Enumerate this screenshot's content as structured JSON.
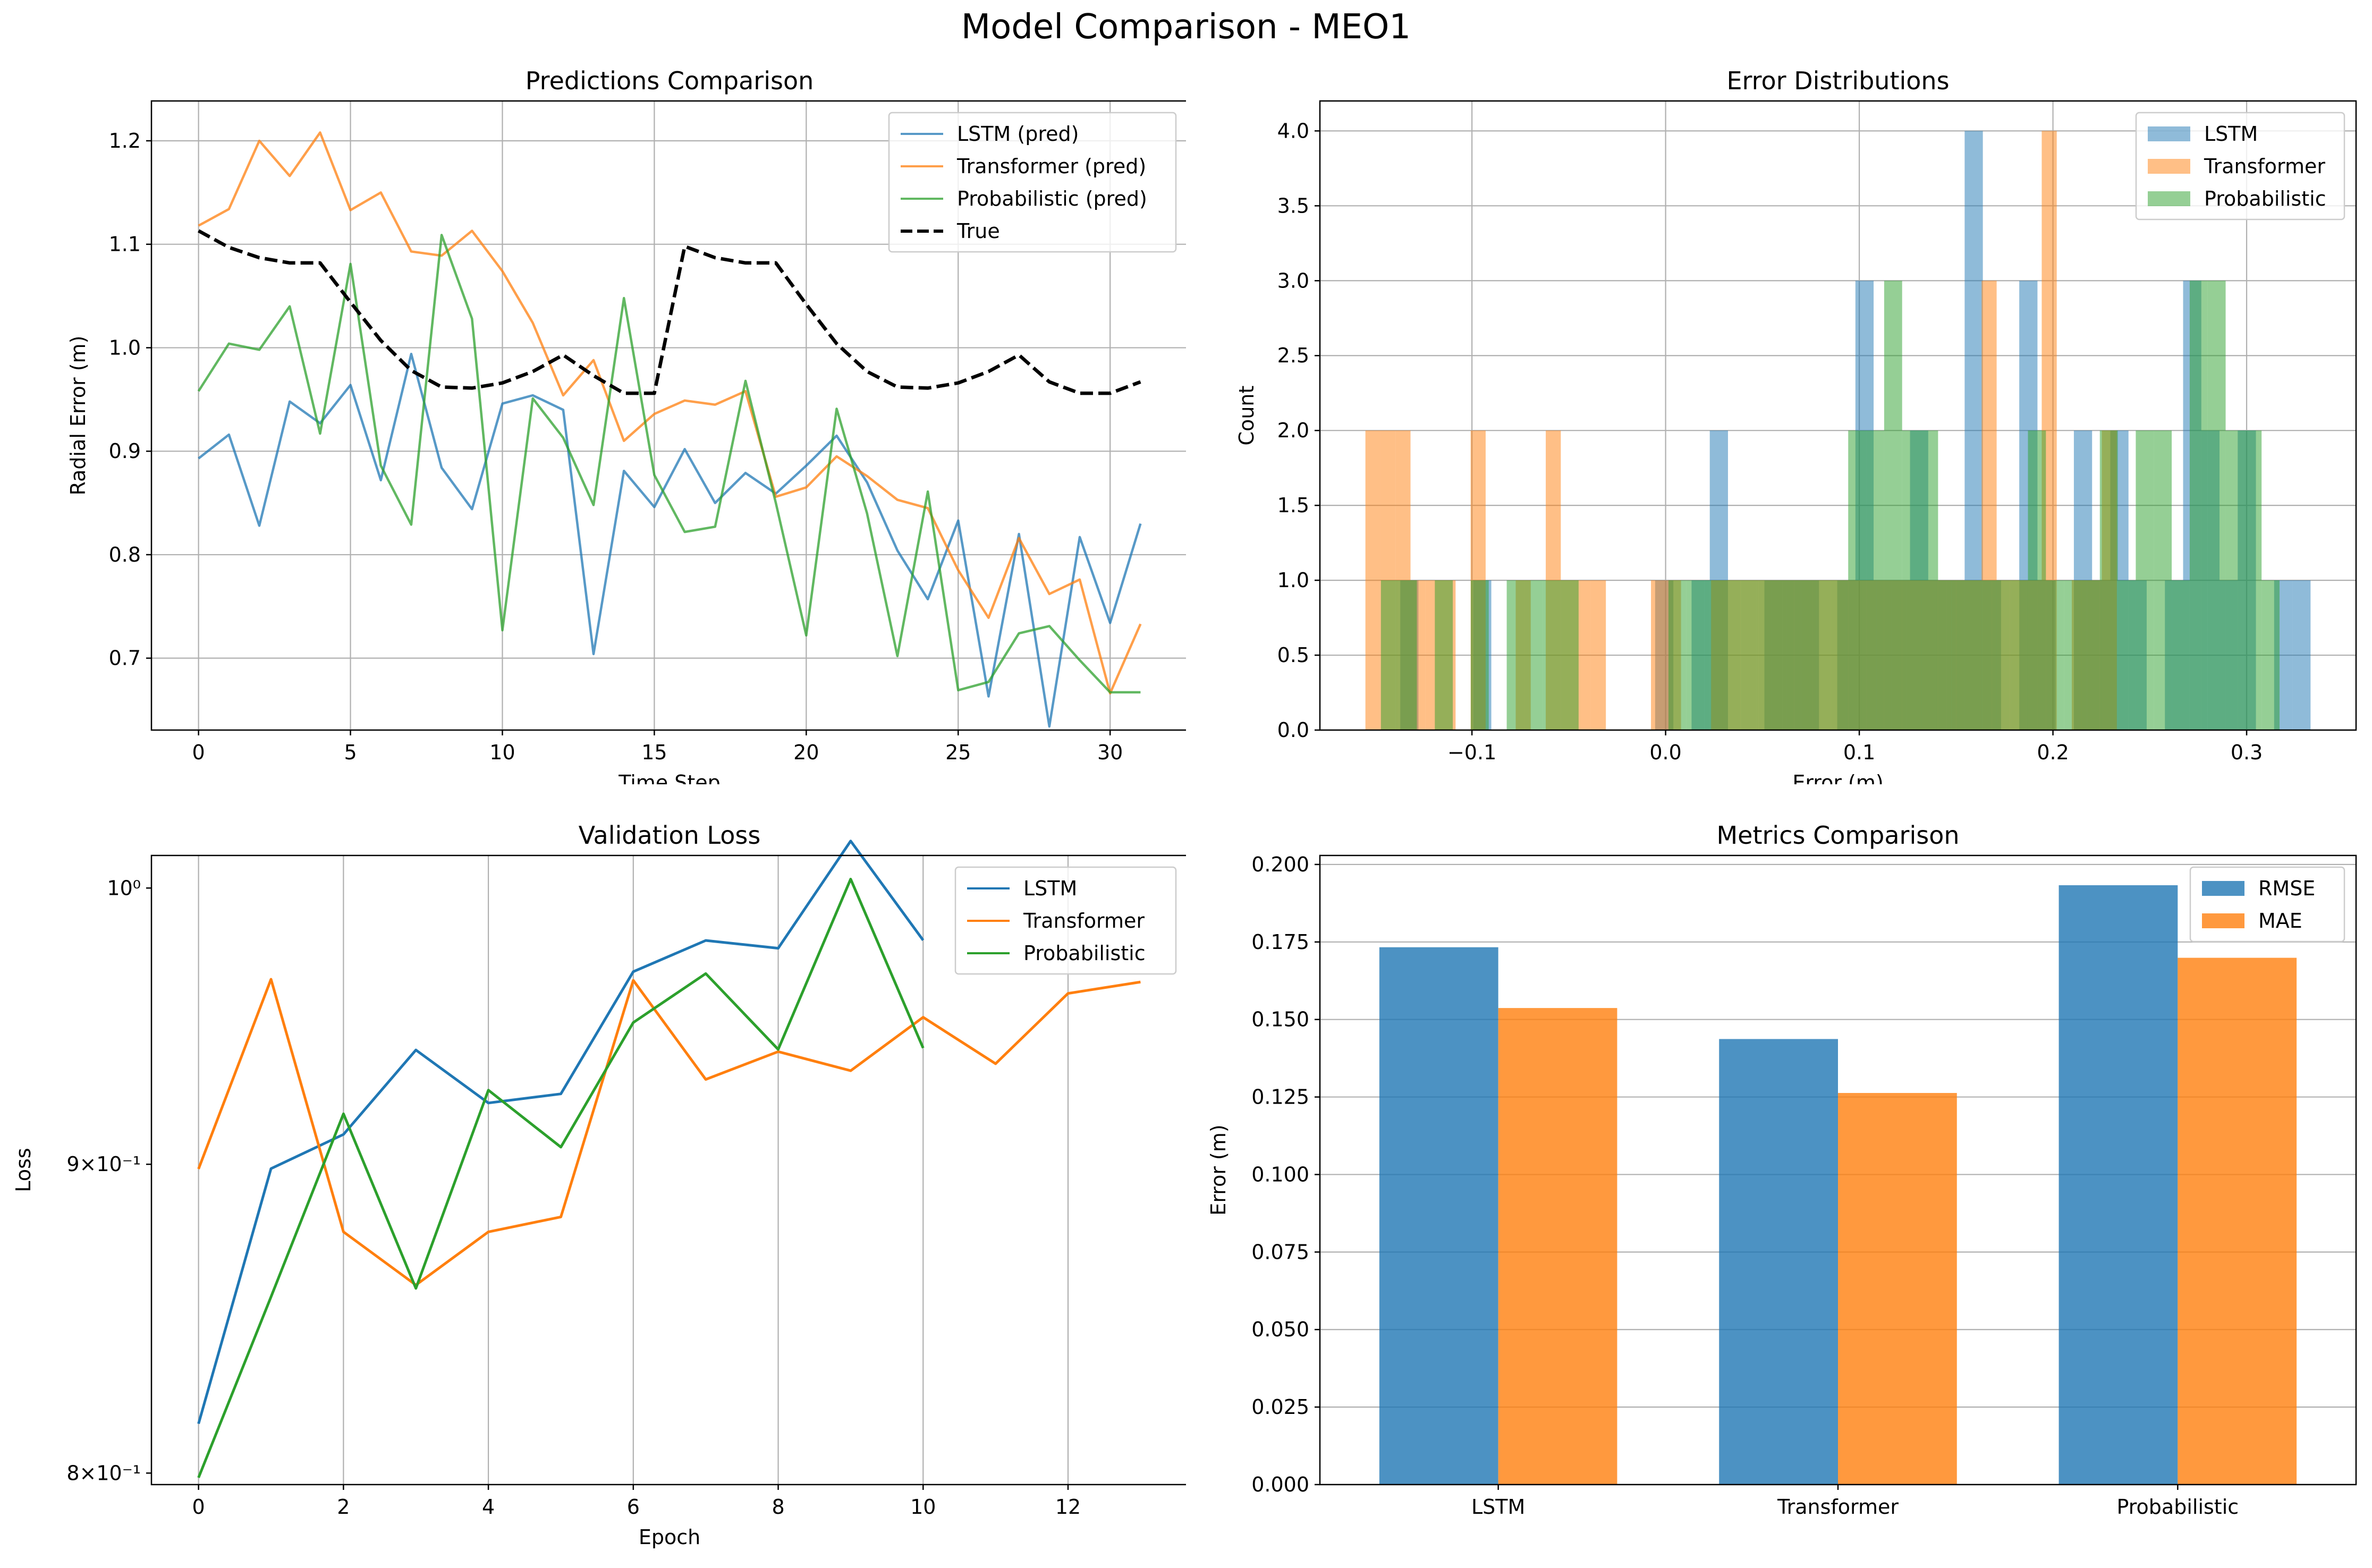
{
  "figure": {
    "title": "Model Comparison - MEO1"
  },
  "colors": {
    "blue": "#1f77b4",
    "orange": "#ff7f0e",
    "green": "#2ca02c",
    "black": "#000000",
    "grid": "#b0b0b0"
  },
  "chart_data": [
    {
      "type": "line",
      "title": "Predictions Comparison",
      "xlabel": "Time Step",
      "ylabel": "Radial Error (m)",
      "xlim": [
        -1.55,
        32.55
      ],
      "ylim": [
        0.6305,
        1.2385
      ],
      "xticks": [
        0,
        5,
        10,
        15,
        20,
        25,
        30
      ],
      "yticks": [
        0.7,
        0.8,
        0.9,
        1.0,
        1.1,
        1.2
      ],
      "ytick_labels": [
        "0.7",
        "0.8",
        "0.9",
        "1.0",
        "1.1",
        "1.2"
      ],
      "grid": true,
      "legend_position": "upper right",
      "x": [
        0,
        1,
        2,
        3,
        4,
        5,
        6,
        7,
        8,
        9,
        10,
        11,
        12,
        13,
        14,
        15,
        16,
        17,
        18,
        19,
        20,
        21,
        22,
        23,
        24,
        25,
        26,
        27,
        28,
        29,
        30,
        31
      ],
      "series": [
        {
          "name": "LSTM (pred)",
          "color": "#1f77b4",
          "alpha": 0.75,
          "dashed": false,
          "values": [
            0.893,
            0.916,
            0.828,
            0.948,
            0.927,
            0.964,
            0.872,
            0.994,
            0.884,
            0.844,
            0.946,
            0.954,
            0.94,
            0.704,
            0.881,
            0.846,
            0.902,
            0.85,
            0.879,
            0.859,
            0.886,
            0.915,
            0.87,
            0.804,
            0.757,
            0.833,
            0.663,
            0.82,
            0.634,
            0.817,
            0.734,
            0.83
          ]
        },
        {
          "name": "Transformer (pred)",
          "color": "#ff7f0e",
          "alpha": 0.75,
          "dashed": false,
          "values": [
            1.118,
            1.134,
            1.2,
            1.166,
            1.208,
            1.133,
            1.15,
            1.093,
            1.089,
            1.113,
            1.074,
            1.024,
            0.954,
            0.988,
            0.91,
            0.936,
            0.949,
            0.945,
            0.958,
            0.856,
            0.865,
            0.895,
            0.876,
            0.853,
            0.845,
            0.785,
            0.739,
            0.816,
            0.762,
            0.776,
            0.666,
            0.733
          ]
        },
        {
          "name": "Probabilistic (pred)",
          "color": "#2ca02c",
          "alpha": 0.75,
          "dashed": false,
          "values": [
            0.958,
            1.004,
            0.998,
            1.04,
            0.917,
            1.081,
            0.886,
            0.829,
            1.109,
            1.028,
            0.727,
            0.951,
            0.913,
            0.848,
            1.048,
            0.877,
            0.822,
            0.827,
            0.968,
            0.85,
            0.722,
            0.941,
            0.84,
            0.702,
            0.861,
            0.669,
            0.677,
            0.724,
            0.731,
            0.698,
            0.667,
            0.667
          ]
        },
        {
          "name": "True",
          "color": "#000000",
          "alpha": 1,
          "dashed": true,
          "values": [
            1.113,
            1.097,
            1.087,
            1.082,
            1.082,
            1.044,
            1.007,
            0.978,
            0.962,
            0.961,
            0.966,
            0.977,
            0.993,
            0.973,
            0.956,
            0.956,
            1.098,
            1.087,
            1.082,
            1.082,
            1.042,
            1.004,
            0.977,
            0.962,
            0.961,
            0.966,
            0.977,
            0.993,
            0.967,
            0.956,
            0.956,
            0.967
          ]
        }
      ]
    },
    {
      "type": "histogram",
      "title": "Error Distributions",
      "xlabel": "Error (m)",
      "ylabel": "Count",
      "xlim": [
        -0.1785,
        0.3565
      ],
      "ylim": [
        0,
        4.2
      ],
      "xticks": [
        -0.1,
        0.0,
        0.1,
        0.2,
        0.3
      ],
      "xtick_labels": [
        "−0.1",
        "0.0",
        "0.1",
        "0.2",
        "0.3"
      ],
      "yticks": [
        0,
        0.5,
        1.0,
        1.5,
        2.0,
        2.5,
        3.0,
        3.5,
        4.0
      ],
      "ytick_labels": [
        "0.0",
        "0.5",
        "1.0",
        "1.5",
        "2.0",
        "2.5",
        "3.0",
        "3.5",
        "4.0"
      ],
      "grid": true,
      "legend_position": "upper right",
      "series": [
        {
          "name": "LSTM",
          "color": "#1f77b4",
          "alpha": 0.5,
          "range": [
            -0.137,
            0.333
          ],
          "counts": [
            1,
            0,
            0,
            0,
            1,
            0,
            0,
            0,
            0,
            0,
            0,
            0,
            0,
            0,
            1,
            0,
            1,
            2,
            0,
            0,
            1,
            1,
            1,
            0,
            1,
            3,
            1,
            1,
            2,
            1,
            1,
            4,
            1,
            0,
            3,
            1,
            0,
            2,
            1,
            2,
            1,
            0,
            1,
            3,
            2,
            1,
            2,
            0,
            1,
            1
          ]
        },
        {
          "name": "Transformer",
          "color": "#ff7f0e",
          "alpha": 0.5,
          "range": [
            -0.155,
            0.233
          ],
          "counts": [
            2,
            2,
            2,
            1,
            1,
            1,
            0,
            2,
            0,
            0,
            1,
            0,
            2,
            1,
            1,
            1,
            0,
            0,
            0,
            1,
            1,
            0,
            0,
            1,
            1,
            1,
            1,
            1,
            1,
            1,
            1,
            1,
            1,
            1,
            1,
            1,
            1,
            1,
            1,
            1,
            1,
            3,
            1,
            1,
            1,
            4,
            0,
            1,
            1,
            2
          ]
        },
        {
          "name": "Probabilistic",
          "color": "#2ca02c",
          "alpha": 0.5,
          "range": [
            -0.147,
            0.317
          ],
          "counts": [
            1,
            1,
            0,
            1,
            0,
            1,
            0,
            1,
            1,
            1,
            1,
            0,
            0,
            0,
            0,
            0,
            1,
            1,
            1,
            1,
            1,
            1,
            1,
            1,
            1,
            1,
            2,
            2,
            3,
            2,
            2,
            1,
            1,
            1,
            1,
            1,
            2,
            1,
            1,
            1,
            2,
            1,
            2,
            2,
            1,
            3,
            3,
            2,
            2,
            1
          ]
        }
      ]
    },
    {
      "type": "line",
      "title": "Validation Loss",
      "xlabel": "Epoch",
      "ylabel": "Loss",
      "yscale": "log",
      "xlim": [
        -0.65,
        13.65
      ],
      "ylim": [
        0.7965,
        1.0125
      ],
      "xticks": [
        0,
        2,
        4,
        6,
        8,
        10,
        12
      ],
      "ytick_labels": [
        "10⁰",
        "9×10⁻¹",
        "8×10⁻¹"
      ],
      "grid": true,
      "legend_position": "upper right",
      "series": [
        {
          "name": "LSTM",
          "color": "#1f77b4",
          "x": [
            0,
            1,
            2,
            3,
            4,
            5,
            6,
            7,
            8,
            9,
            10
          ],
          "values": [
            0.8152,
            0.8985,
            0.9103,
            0.9401,
            0.9213,
            0.9245,
            0.9686,
            0.9802,
            0.9773,
            1.0181,
            0.9803
          ]
        },
        {
          "name": "Transformer",
          "color": "#ff7f0e",
          "x": [
            0,
            1,
            2,
            3,
            4,
            5,
            6,
            7,
            8,
            9,
            10,
            11,
            12,
            13
          ],
          "values": [
            0.8984,
            0.9658,
            0.8771,
            0.8595,
            0.8771,
            0.8821,
            0.9654,
            0.9296,
            0.9395,
            0.9327,
            0.9519,
            0.9352,
            0.9606,
            0.9648
          ]
        },
        {
          "name": "Probabilistic",
          "color": "#2ca02c",
          "x": [
            0,
            1,
            2,
            3,
            4,
            5,
            6,
            7,
            8,
            9,
            10
          ],
          "values": [
            0.7986,
            0.8556,
            0.9175,
            0.8584,
            0.9258,
            0.9059,
            0.95,
            0.9679,
            0.9403,
            1.0034,
            0.9408
          ]
        }
      ]
    },
    {
      "type": "bar",
      "title": "Metrics Comparison",
      "xlabel": "",
      "ylabel": "Error (m)",
      "categories": [
        "LSTM",
        "Transformer",
        "Probabilistic"
      ],
      "ylim": [
        0,
        0.2029
      ],
      "yticks": [
        0,
        0.025,
        0.05,
        0.075,
        0.1,
        0.125,
        0.15,
        0.175,
        0.2
      ],
      "ytick_labels": [
        "0.000",
        "0.025",
        "0.050",
        "0.075",
        "0.100",
        "0.125",
        "0.150",
        "0.175",
        "0.200"
      ],
      "grid": true,
      "legend_position": "upper right",
      "series": [
        {
          "name": "RMSE",
          "color": "#1f77b4",
          "alpha": 0.8,
          "values": [
            0.1733,
            0.1437,
            0.1933
          ]
        },
        {
          "name": "MAE",
          "color": "#ff7f0e",
          "alpha": 0.8,
          "values": [
            0.1537,
            0.1263,
            0.1699
          ]
        }
      ]
    }
  ]
}
